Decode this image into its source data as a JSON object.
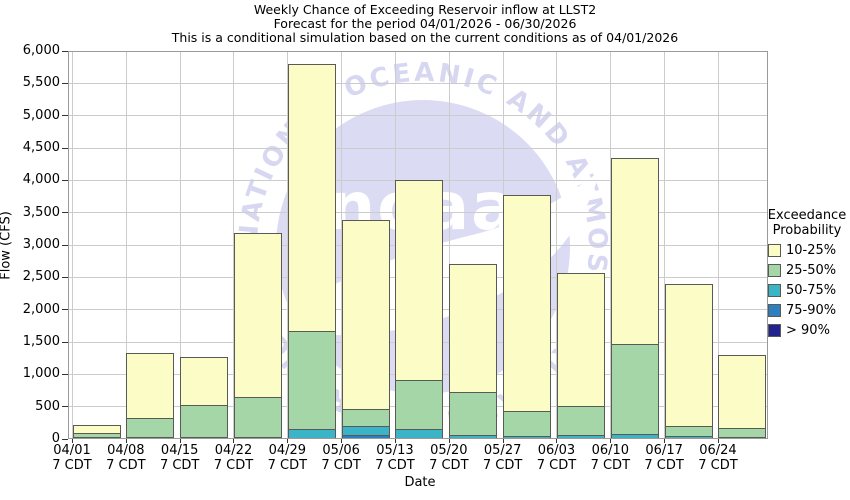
{
  "title": {
    "line1": "Weekly Chance of Exceeding Reservoir inflow at LLST2",
    "line2": "Forecast for the period 04/01/2026 - 06/30/2026",
    "line3": "This is a conditional simulation based on the current conditions as of 04/01/2026"
  },
  "legend": {
    "title_line1": "Exceedance",
    "title_line2": "Probability",
    "items": [
      {
        "label": "10-25%",
        "color": "#fcfcc6"
      },
      {
        "label": "25-50%",
        "color": "#a5d6a7"
      },
      {
        "label": "50-75%",
        "color": "#3cb4c8"
      },
      {
        "label": "75-90%",
        "color": "#2e7fbf"
      },
      {
        "label": "> 90%",
        "color": "#23238f"
      }
    ]
  },
  "watermark": {
    "logo_text": "noaa",
    "ring_text": "NATIONAL OCEANIC AND ATMOSPHERIC ADMINISTRATION"
  },
  "chart_data": {
    "type": "bar",
    "stacked": true,
    "title": "Weekly Chance of Exceeding Reservoir inflow at LLST2",
    "xlabel": "Date",
    "ylabel": "Flow (CFS)",
    "ylim": [
      0,
      6000
    ],
    "ytick_step": 500,
    "grid": true,
    "legend_position": "right",
    "legend_title": "Exceedance Probability",
    "x_tick_sublabel": "7 CDT",
    "categories": [
      "04/01",
      "04/08",
      "04/15",
      "04/22",
      "04/29",
      "05/06",
      "05/13",
      "05/20",
      "05/27",
      "06/03",
      "06/10",
      "06/17",
      "06/24"
    ],
    "totals": [
      220,
      1330,
      1270,
      3180,
      5800,
      3380,
      4000,
      2700,
      3780,
      2560,
      4350,
      2400,
      1300
    ],
    "series": [
      {
        "name": "> 90%",
        "color": "#23238f",
        "values": [
          0,
          0,
          0,
          0,
          0,
          0,
          0,
          0,
          0,
          0,
          0,
          0,
          0
        ]
      },
      {
        "name": "75-90%",
        "color": "#2e7fbf",
        "values": [
          0,
          0,
          0,
          0,
          0,
          40,
          0,
          0,
          0,
          0,
          0,
          0,
          0
        ]
      },
      {
        "name": "50-75%",
        "color": "#3cb4c8",
        "values": [
          10,
          10,
          10,
          15,
          145,
          150,
          140,
          45,
          25,
          40,
          55,
          25,
          15
        ]
      },
      {
        "name": "25-50%",
        "color": "#a5d6a7",
        "values": [
          60,
          300,
          495,
          620,
          1515,
          260,
          760,
          665,
          395,
          460,
          1405,
          155,
          135
        ]
      },
      {
        "name": "10-25%",
        "color": "#fcfcc6",
        "values": [
          150,
          1020,
          765,
          2545,
          4140,
          2930,
          3100,
          1990,
          3360,
          2060,
          2890,
          2220,
          1150
        ]
      }
    ],
    "bar_outline_color": "#5a5a55",
    "gridline_color": "#cccccc"
  }
}
